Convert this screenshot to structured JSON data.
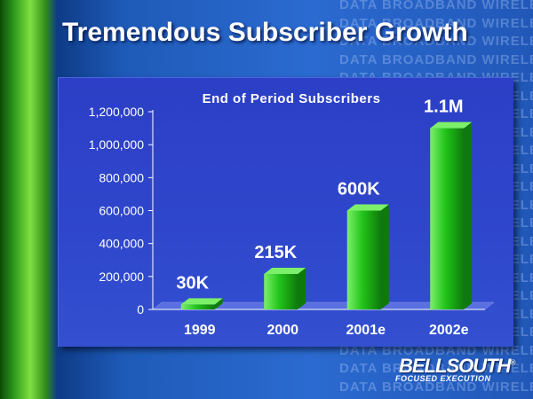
{
  "slide": {
    "title": "Tremendous Subscriber Growth",
    "background_words": [
      "DATA",
      "BROADBAND",
      "WIRELESS"
    ],
    "logo": {
      "name": "BELLSOUTH",
      "tagline": "FOCUSED EXECUTION",
      "tm": "®"
    }
  },
  "colors": {
    "bar": "#22c41a",
    "bar_dark": "#0e7a0a",
    "bar_light": "#7cf06a",
    "panel": "#2c3fc6",
    "text": "#ffffff"
  },
  "chart_data": {
    "type": "bar",
    "title": "End of Period Subscribers",
    "categories": [
      "1999",
      "2000",
      "2001e",
      "2002e"
    ],
    "values": [
      30000,
      215000,
      600000,
      1100000
    ],
    "data_labels": [
      "30K",
      "215K",
      "600K",
      "1.1M"
    ],
    "ylim": [
      0,
      1200000
    ],
    "yticks": [
      0,
      200000,
      400000,
      600000,
      800000,
      1000000,
      1200000
    ],
    "ytick_labels": [
      "0",
      "200,000",
      "400,000",
      "600,000",
      "800,000",
      "1,000,000",
      "1,200,000"
    ],
    "xlabel": "",
    "ylabel": "",
    "grid": false,
    "legend": "none"
  }
}
